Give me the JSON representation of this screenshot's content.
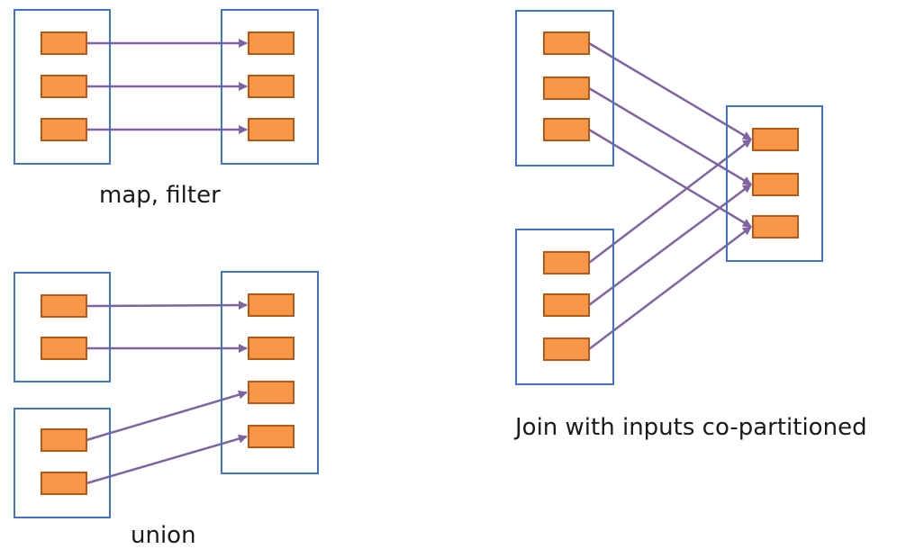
{
  "captions": {
    "map_filter": "map, filter",
    "union": "union",
    "join": "Join with inputs co-partitioned"
  },
  "colors": {
    "rdd_border": "#4472c4",
    "partition_fill": "#f79646",
    "partition_border": "#b35a1a",
    "dependency_arrow": "#8064a2"
  },
  "diagrams": [
    {
      "id": "map-filter",
      "rdds": [
        {
          "id": "parent",
          "partitions": 3
        },
        {
          "id": "child",
          "partitions": 3
        }
      ],
      "dependencies": [
        [
          "parent:0",
          "child:0"
        ],
        [
          "parent:1",
          "child:1"
        ],
        [
          "parent:2",
          "child:2"
        ]
      ]
    },
    {
      "id": "union",
      "rdds": [
        {
          "id": "parent-a",
          "partitions": 2
        },
        {
          "id": "parent-b",
          "partitions": 2
        },
        {
          "id": "child",
          "partitions": 4
        }
      ],
      "dependencies": [
        [
          "parent-a:0",
          "child:0"
        ],
        [
          "parent-a:1",
          "child:1"
        ],
        [
          "parent-b:0",
          "child:2"
        ],
        [
          "parent-b:1",
          "child:3"
        ]
      ]
    },
    {
      "id": "join",
      "rdds": [
        {
          "id": "parent-a",
          "partitions": 3
        },
        {
          "id": "parent-b",
          "partitions": 3
        },
        {
          "id": "child",
          "partitions": 3
        }
      ],
      "dependencies": [
        [
          "parent-a:0",
          "child:0"
        ],
        [
          "parent-a:1",
          "child:1"
        ],
        [
          "parent-a:2",
          "child:2"
        ],
        [
          "parent-b:0",
          "child:0"
        ],
        [
          "parent-b:1",
          "child:1"
        ],
        [
          "parent-b:2",
          "child:2"
        ]
      ]
    }
  ]
}
